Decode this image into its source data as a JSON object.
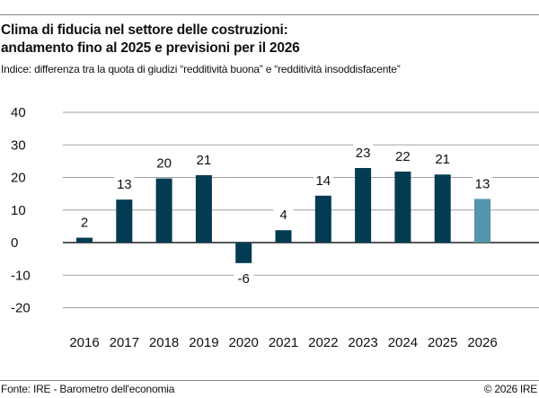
{
  "header": {
    "title_line1": "Clima di fiducia nel settore delle costruzioni:",
    "title_line2": "andamento fino al 2025 e previsioni per il 2026",
    "subtitle": "Indice: differenza tra la quota di giudizi “redditività buona” e “redditività insoddisfacente”"
  },
  "footer": {
    "source": "Fonte: IRE - Barometro dell'economia",
    "copyright": "© 2026 IRE"
  },
  "chart_data": {
    "type": "bar",
    "title": "Clima di fiducia nel settore delle costruzioni: andamento fino al 2025 e previsioni per il 2026",
    "subtitle": "Indice: differenza tra la quota di giudizi “redditività buona” e “redditività insoddisfacente”",
    "categories": [
      "2016",
      "2017",
      "2018",
      "2019",
      "2020",
      "2021",
      "2022",
      "2023",
      "2024",
      "2025",
      "2026"
    ],
    "values": [
      1.5,
      13.2,
      19.7,
      20.7,
      -6.3,
      3.8,
      14.4,
      22.9,
      21.8,
      20.9,
      13.4
    ],
    "data_labels": [
      "2",
      "13",
      "20",
      "21",
      "-6",
      "4",
      "14",
      "23",
      "22",
      "21",
      "13"
    ],
    "yticks": [
      "40",
      "30",
      "20",
      "10",
      "0",
      "-10",
      "-20"
    ],
    "ylim": [
      -20,
      40
    ],
    "grid": true,
    "colors": {
      "actual": "#033c52",
      "forecast": "#5594ad"
    },
    "forecast_categories": [
      "2026"
    ]
  }
}
